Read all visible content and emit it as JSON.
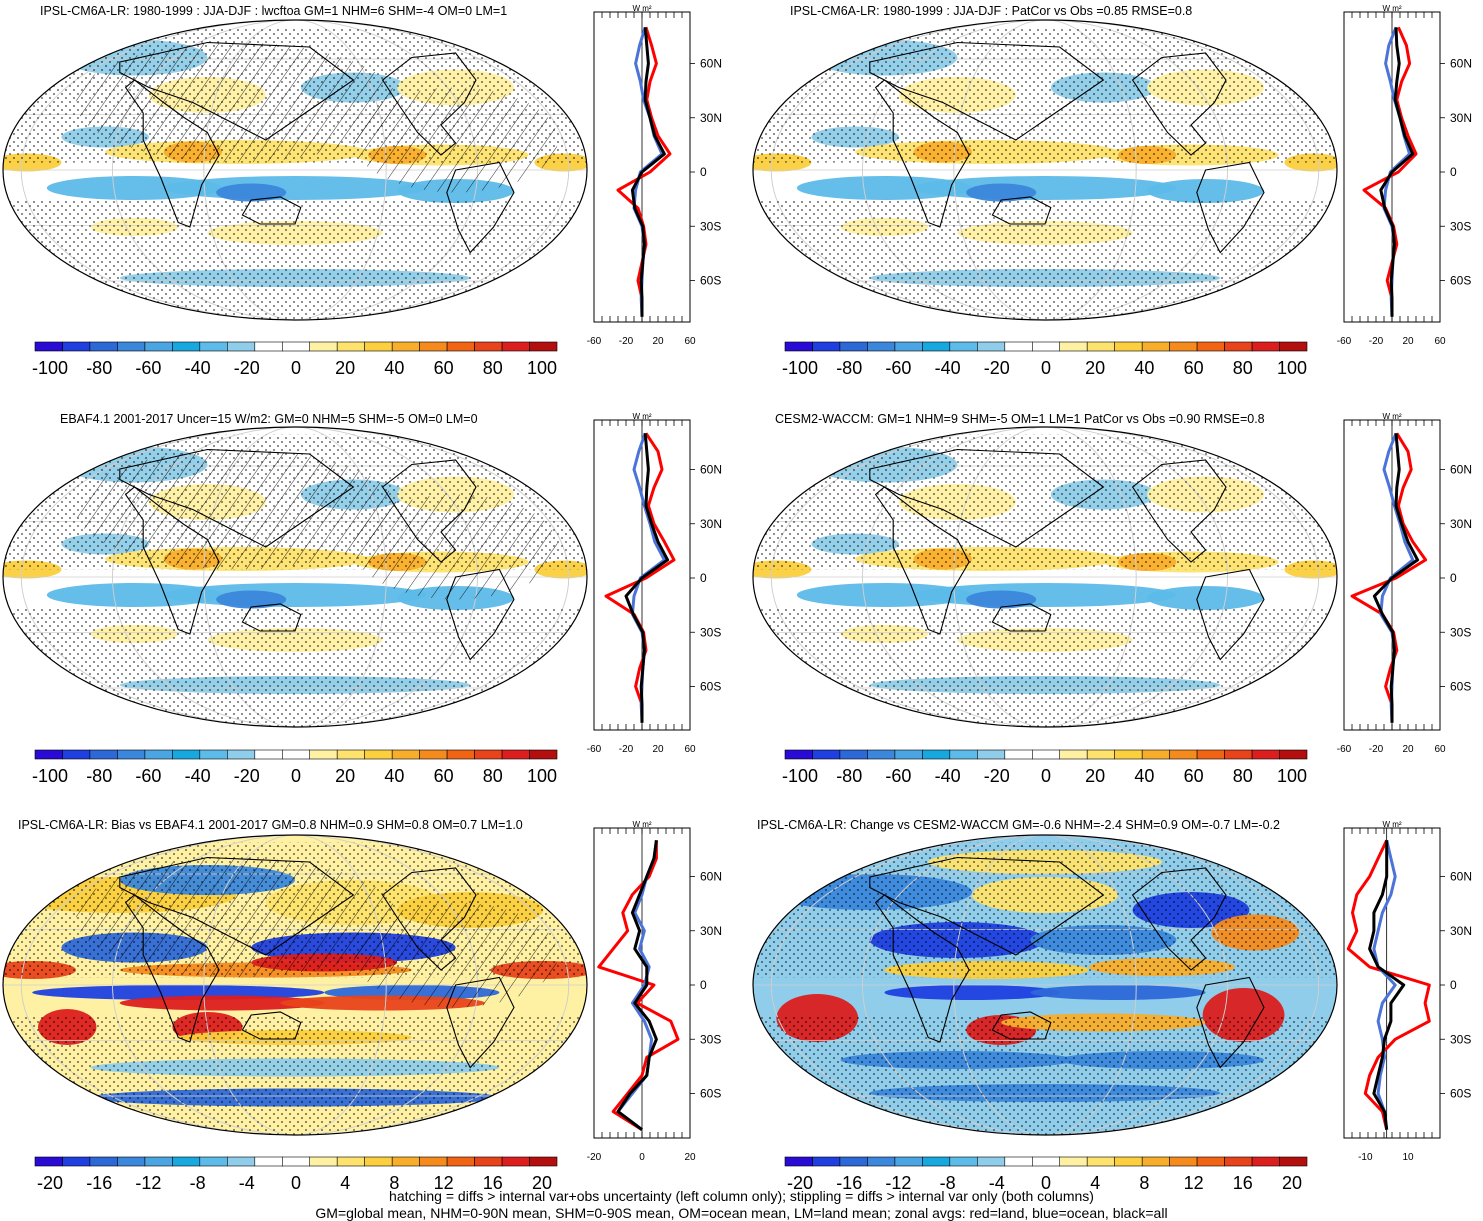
{
  "colors": {
    "cbar_main": [
      "#2a0bd6",
      "#1f3fe0",
      "#2d68d8",
      "#3b87dc",
      "#4aa5e2",
      "#17a8e0",
      "#5cbbe8",
      "#8fcdea",
      "#ffffff",
      "#ffffff",
      "#fff1a3",
      "#fde36d",
      "#fbcf3d",
      "#f9ae2b",
      "#f58a1d",
      "#f06414",
      "#e8431a",
      "#dc1e1e",
      "#b40f0f"
    ],
    "ocean": "#4b73d8",
    "land": "#ff0000",
    "all": "#000000"
  },
  "footer": {
    "line1": "hatching = diffs > internal var+obs uncertainty (left column only); stippling = diffs > internal var only (both columns)",
    "line2": "GM=global mean, NHM=0-90N mean, SHM=0-90S mean, OM=ocean mean, LM=land mean; zonal avgs: red=land, blue=ocean, black=all"
  },
  "chart_data": [
    {
      "type": "heatmap",
      "title": "IPSL-CM6A-LR: 1980-1999 : JJA-DJF : lwcftoa GM=1 NHM=6 SHM=-4 OM=0 LM=1",
      "colorbar_ticks": [
        "-100",
        "-80",
        "-60",
        "-40",
        "-20",
        "0",
        "20",
        "40",
        "60",
        "80",
        "100"
      ],
      "zonal": {
        "unit_label": "W m²",
        "x_ticks": [
          "-60",
          "-20",
          "20",
          "60"
        ],
        "x_range": [
          -60,
          60
        ],
        "lat_ticks": [
          "60N",
          "30N",
          "0",
          "30S",
          "60S"
        ],
        "lat": [
          80,
          70,
          60,
          50,
          40,
          30,
          20,
          10,
          0,
          -10,
          -20,
          -30,
          -40,
          -50,
          -60,
          -70,
          -80
        ],
        "land": [
          5,
          12,
          18,
          10,
          6,
          12,
          20,
          35,
          10,
          -30,
          -5,
          2,
          5,
          0,
          -5,
          0,
          0
        ],
        "ocean": [
          4,
          -3,
          -8,
          -2,
          2,
          10,
          15,
          25,
          -2,
          -8,
          -10,
          0,
          3,
          1,
          0,
          -1,
          0
        ],
        "all": [
          4,
          6,
          8,
          5,
          4,
          10,
          16,
          28,
          0,
          -12,
          -9,
          1,
          3,
          1,
          -1,
          0,
          0
        ]
      }
    },
    {
      "type": "heatmap",
      "title": "IPSL-CM6A-LR: 1980-1999 : JJA-DJF : PatCor vs Obs =0.85 RMSE=0.8",
      "colorbar_ticks": [
        "-100",
        "-80",
        "-60",
        "-40",
        "-20",
        "0",
        "20",
        "40",
        "60",
        "80",
        "100"
      ],
      "zonal": {
        "unit_label": "W m²",
        "x_ticks": [
          "-60",
          "-20",
          "20",
          "60"
        ],
        "x_range": [
          -60,
          60
        ],
        "lat_ticks": [
          "60N",
          "30N",
          "0",
          "30S",
          "60S"
        ],
        "lat": [
          80,
          70,
          60,
          50,
          40,
          30,
          20,
          10,
          0,
          -10,
          -20,
          -30,
          -40,
          -50,
          -60,
          -70,
          -80
        ],
        "land": [
          8,
          18,
          22,
          12,
          6,
          12,
          20,
          30,
          8,
          -35,
          -8,
          2,
          6,
          0,
          -6,
          0,
          0
        ],
        "ocean": [
          5,
          -4,
          -8,
          -2,
          3,
          10,
          15,
          22,
          -2,
          -8,
          -10,
          0,
          3,
          1,
          0,
          -1,
          0
        ],
        "all": [
          5,
          6,
          9,
          6,
          4,
          10,
          16,
          26,
          0,
          -14,
          -9,
          1,
          3,
          1,
          -1,
          0,
          0
        ]
      }
    },
    {
      "type": "heatmap",
      "title": "EBAF4.1 2001-2017 Uncer=15 W/m2: GM=0 NHM=5 SHM=-5 OM=0 LM=0",
      "colorbar_ticks": [
        "-100",
        "-80",
        "-60",
        "-40",
        "-20",
        "0",
        "20",
        "40",
        "60",
        "80",
        "100"
      ],
      "zonal": {
        "unit_label": "W m²",
        "x_ticks": [
          "-60",
          "-20",
          "20",
          "60"
        ],
        "x_range": [
          -60,
          60
        ],
        "lat_ticks": [
          "60N",
          "30N",
          "0",
          "30S",
          "60S"
        ],
        "lat": [
          80,
          70,
          60,
          50,
          40,
          30,
          20,
          10,
          0,
          -10,
          -20,
          -30,
          -40,
          -50,
          -60,
          -70,
          -80
        ],
        "land": [
          5,
          20,
          25,
          15,
          8,
          15,
          28,
          40,
          5,
          -45,
          -10,
          2,
          5,
          -3,
          -8,
          0,
          0
        ],
        "ocean": [
          4,
          -4,
          -10,
          -3,
          3,
          10,
          16,
          28,
          -2,
          -10,
          -12,
          0,
          3,
          1,
          0,
          -1,
          0
        ],
        "all": [
          4,
          6,
          8,
          6,
          5,
          12,
          20,
          32,
          0,
          -20,
          -11,
          1,
          3,
          1,
          -1,
          0,
          0
        ]
      }
    },
    {
      "type": "heatmap",
      "title": "CESM2-WACCM: GM=1 NHM=9 SHM=-5 OM=1 LM=1 PatCor vs Obs =0.90 RMSE=0.8",
      "colorbar_ticks": [
        "-100",
        "-80",
        "-60",
        "-40",
        "-20",
        "0",
        "20",
        "40",
        "60",
        "80",
        "100"
      ],
      "zonal": {
        "unit_label": "W m²",
        "x_ticks": [
          "-60",
          "-20",
          "20",
          "60"
        ],
        "x_range": [
          -60,
          60
        ],
        "lat_ticks": [
          "60N",
          "30N",
          "0",
          "30S",
          "60S"
        ],
        "lat": [
          80,
          70,
          60,
          50,
          40,
          30,
          20,
          10,
          0,
          -10,
          -20,
          -30,
          -40,
          -50,
          -60,
          -70,
          -80
        ],
        "land": [
          6,
          20,
          24,
          14,
          8,
          14,
          26,
          42,
          5,
          -50,
          -12,
          2,
          6,
          -2,
          -8,
          0,
          0
        ],
        "ocean": [
          5,
          -4,
          -10,
          -3,
          3,
          10,
          16,
          26,
          -2,
          -12,
          -14,
          0,
          3,
          1,
          0,
          -1,
          0
        ],
        "all": [
          5,
          7,
          9,
          6,
          5,
          12,
          20,
          32,
          0,
          -22,
          -12,
          1,
          3,
          1,
          -1,
          0,
          0
        ]
      }
    },
    {
      "type": "heatmap",
      "title": "IPSL-CM6A-LR: Bias vs EBAF4.1 2001-2017 GM=0.8 NHM=0.9 SHM=0.8 OM=0.7 LM=1.0",
      "colorbar_ticks": [
        "-20",
        "-16",
        "-12",
        "-8",
        "-4",
        "0",
        "4",
        "8",
        "12",
        "16",
        "20"
      ],
      "zonal": {
        "unit_label": "W m²",
        "x_ticks": [
          "-20",
          "0",
          "20"
        ],
        "x_range": [
          -20,
          20
        ],
        "lat_ticks": [
          "60N",
          "30N",
          "0",
          "30S",
          "60S"
        ],
        "lat": [
          80,
          70,
          60,
          50,
          40,
          30,
          20,
          10,
          0,
          -10,
          -20,
          -30,
          -40,
          -50,
          -60,
          -70,
          -80
        ],
        "land": [
          6,
          6,
          3,
          -4,
          -8,
          -6,
          -12,
          -18,
          5,
          -2,
          12,
          15,
          2,
          0,
          -6,
          -12,
          0
        ],
        "ocean": [
          6,
          5,
          2,
          0,
          -3,
          1,
          -1,
          3,
          1,
          -4,
          1,
          4,
          3,
          2,
          -4,
          -10,
          0
        ],
        "all": [
          6,
          5,
          2,
          -1,
          -4,
          -1,
          -3,
          2,
          2,
          -3,
          3,
          6,
          3,
          2,
          -5,
          -10,
          0
        ]
      }
    },
    {
      "type": "heatmap",
      "title": "IPSL-CM6A-LR: Change vs CESM2-WACCM GM=-0.6 NHM=-2.4 SHM=0.9 OM=-0.7 LM=-0.2",
      "colorbar_ticks": [
        "-20",
        "-16",
        "-12",
        "-8",
        "-4",
        "0",
        "4",
        "8",
        "12",
        "16",
        "20"
      ],
      "zonal": {
        "unit_label": "W m²",
        "x_ticks": [
          "-10",
          "10"
        ],
        "x_range": [
          -20,
          25
        ],
        "lat_ticks": [
          "60N",
          "30N",
          "0",
          "30S",
          "60S"
        ],
        "lat": [
          80,
          70,
          60,
          50,
          40,
          30,
          20,
          10,
          0,
          -10,
          -20,
          -30,
          -40,
          -50,
          -60,
          -70,
          -80
        ],
        "land": [
          0,
          -4,
          -8,
          -14,
          -16,
          -14,
          -18,
          -8,
          20,
          18,
          20,
          4,
          -4,
          -8,
          -10,
          -2,
          0
        ],
        "ocean": [
          0,
          2,
          4,
          2,
          -2,
          -4,
          -6,
          -4,
          4,
          -2,
          -4,
          -2,
          -1,
          -3,
          -4,
          -1,
          0
        ],
        "all": [
          0,
          0,
          0,
          -2,
          -6,
          -6,
          -8,
          -4,
          8,
          2,
          2,
          -1,
          -2,
          -4,
          -6,
          -1,
          0
        ]
      }
    }
  ]
}
